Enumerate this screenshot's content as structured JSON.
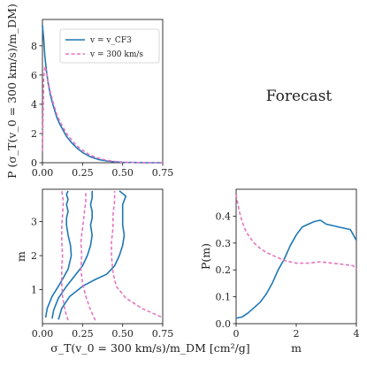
{
  "forecast_label": "Forecast",
  "colors": {
    "solid": "#1f77b4",
    "dashed": "#e377c2",
    "axis": "#222222"
  },
  "chart_data": [
    {
      "type": "line",
      "panel": "top-left",
      "xlabel": "",
      "ylabel": "P (σ_T(v_0 = 300 km/s)/m_DM)",
      "xlim": [
        0,
        0.75
      ],
      "ylim": [
        0,
        9.8
      ],
      "xticks": [
        "0.00",
        "0.25",
        "0.50",
        "0.75"
      ],
      "yticks": [
        "0",
        "2",
        "4",
        "6",
        "8"
      ],
      "legend_position": "top-right",
      "series": [
        {
          "name": "v = v_CF3",
          "style": "solid",
          "x": [
            0.0,
            0.008,
            0.015,
            0.025,
            0.035,
            0.05,
            0.07,
            0.09,
            0.11,
            0.13,
            0.15,
            0.18,
            0.21,
            0.25,
            0.3,
            0.35,
            0.4,
            0.45,
            0.5,
            0.55,
            0.6,
            0.65,
            0.7,
            0.75
          ],
          "y": [
            9.4,
            8.4,
            7.3,
            6.3,
            5.5,
            4.6,
            3.8,
            3.1,
            2.6,
            2.2,
            1.8,
            1.4,
            1.05,
            0.7,
            0.4,
            0.22,
            0.12,
            0.06,
            0.03,
            0.02,
            0.01,
            0.0,
            0.0,
            0.0
          ]
        },
        {
          "name": "v = 300 km/s",
          "style": "dashed",
          "x": [
            0.0,
            0.008,
            0.015,
            0.025,
            0.035,
            0.05,
            0.07,
            0.09,
            0.11,
            0.13,
            0.15,
            0.18,
            0.21,
            0.25,
            0.3,
            0.35,
            0.4,
            0.45,
            0.5,
            0.55,
            0.6,
            0.65,
            0.7,
            0.75
          ],
          "y": [
            0.8,
            5.8,
            6.6,
            6.2,
            5.6,
            4.8,
            4.0,
            3.3,
            2.8,
            2.4,
            2.0,
            1.6,
            1.2,
            0.85,
            0.5,
            0.3,
            0.17,
            0.09,
            0.04,
            0.02,
            0.01,
            0.0,
            0.0,
            0.0
          ]
        }
      ]
    },
    {
      "type": "line",
      "panel": "bottom-left",
      "xlabel": "σ_T(v_0 = 300 km/s)/m_DM [cm²/g]",
      "ylabel": "m",
      "xlim": [
        0,
        0.75
      ],
      "ylim": [
        0,
        3.95
      ],
      "xticks": [
        "0.00",
        "0.25",
        "0.50",
        "0.75"
      ],
      "yticks": [
        "1",
        "2",
        "3"
      ],
      "series": [
        {
          "name": "",
          "style": "solid",
          "x": [
            0.02,
            0.03,
            0.06,
            0.1,
            0.13,
            0.16,
            0.18,
            0.175,
            0.16,
            0.15,
            0.15,
            0.16,
            0.15,
            0.16,
            0.15,
            0.16
          ],
          "y": [
            0.18,
            0.45,
            0.8,
            1.1,
            1.35,
            1.6,
            2.0,
            2.3,
            2.6,
            2.9,
            3.1,
            3.3,
            3.5,
            3.65,
            3.8,
            3.9
          ]
        },
        {
          "name": "",
          "style": "solid",
          "x": [
            0.06,
            0.07,
            0.1,
            0.15,
            0.2,
            0.25,
            0.28,
            0.3,
            0.31,
            0.3,
            0.31,
            0.31,
            0.3,
            0.31,
            0.31
          ],
          "y": [
            0.15,
            0.4,
            0.75,
            1.1,
            1.4,
            1.7,
            2.0,
            2.3,
            2.6,
            2.9,
            3.1,
            3.3,
            3.5,
            3.7,
            3.9
          ]
        },
        {
          "name": "",
          "style": "solid",
          "x": [
            0.1,
            0.12,
            0.17,
            0.25,
            0.33,
            0.4,
            0.45,
            0.48,
            0.5,
            0.51,
            0.5,
            0.5,
            0.5,
            0.52,
            0.48
          ],
          "y": [
            0.12,
            0.45,
            0.8,
            1.1,
            1.3,
            1.45,
            1.7,
            2.0,
            2.3,
            2.6,
            2.9,
            3.2,
            3.5,
            3.75,
            3.9
          ]
        },
        {
          "name": "",
          "style": "dashed",
          "x": [
            0.16,
            0.14,
            0.125,
            0.12,
            0.12,
            0.125,
            0.12,
            0.12,
            0.125,
            0.13,
            0.12
          ],
          "y": [
            0.1,
            0.4,
            0.8,
            1.2,
            1.6,
            2.0,
            2.4,
            2.8,
            3.2,
            3.6,
            3.9
          ]
        },
        {
          "name": "",
          "style": "dashed",
          "x": [
            0.33,
            0.3,
            0.27,
            0.25,
            0.24,
            0.245,
            0.24,
            0.25,
            0.26,
            0.27,
            0.27
          ],
          "y": [
            0.1,
            0.4,
            0.8,
            1.2,
            1.6,
            2.0,
            2.4,
            2.8,
            3.2,
            3.6,
            3.9
          ]
        },
        {
          "name": "",
          "style": "dashed",
          "x": [
            0.74,
            0.62,
            0.52,
            0.46,
            0.44,
            0.43,
            0.43,
            0.44,
            0.44,
            0.45,
            0.45
          ],
          "y": [
            0.2,
            0.45,
            0.75,
            1.1,
            1.5,
            2.0,
            2.4,
            2.8,
            3.2,
            3.6,
            3.9
          ]
        }
      ]
    },
    {
      "type": "line",
      "panel": "bottom-right",
      "xlabel": "m",
      "ylabel": "P(m)",
      "xlim": [
        0,
        4
      ],
      "ylim": [
        0,
        0.5
      ],
      "xticks": [
        "0",
        "2",
        "4"
      ],
      "yticks": [
        "0.0",
        "0.1",
        "0.2",
        "0.3",
        "0.4"
      ],
      "series": [
        {
          "name": "",
          "style": "solid",
          "x": [
            0.0,
            0.2,
            0.4,
            0.6,
            0.8,
            1.0,
            1.2,
            1.4,
            1.6,
            1.8,
            2.0,
            2.2,
            2.4,
            2.6,
            2.8,
            3.0,
            3.2,
            3.4,
            3.6,
            3.8,
            3.9,
            4.0
          ],
          "y": [
            0.02,
            0.025,
            0.04,
            0.06,
            0.08,
            0.11,
            0.15,
            0.2,
            0.24,
            0.29,
            0.33,
            0.36,
            0.37,
            0.38,
            0.385,
            0.37,
            0.365,
            0.36,
            0.355,
            0.35,
            0.33,
            0.31
          ]
        },
        {
          "name": "",
          "style": "dashed",
          "x": [
            0.0,
            0.1,
            0.2,
            0.3,
            0.4,
            0.6,
            0.8,
            1.0,
            1.2,
            1.4,
            1.6,
            1.8,
            2.0,
            2.4,
            2.8,
            3.2,
            3.6,
            3.9,
            4.0
          ],
          "y": [
            0.48,
            0.42,
            0.38,
            0.35,
            0.33,
            0.3,
            0.28,
            0.265,
            0.255,
            0.245,
            0.235,
            0.23,
            0.225,
            0.225,
            0.23,
            0.225,
            0.22,
            0.215,
            0.2
          ]
        }
      ]
    }
  ]
}
